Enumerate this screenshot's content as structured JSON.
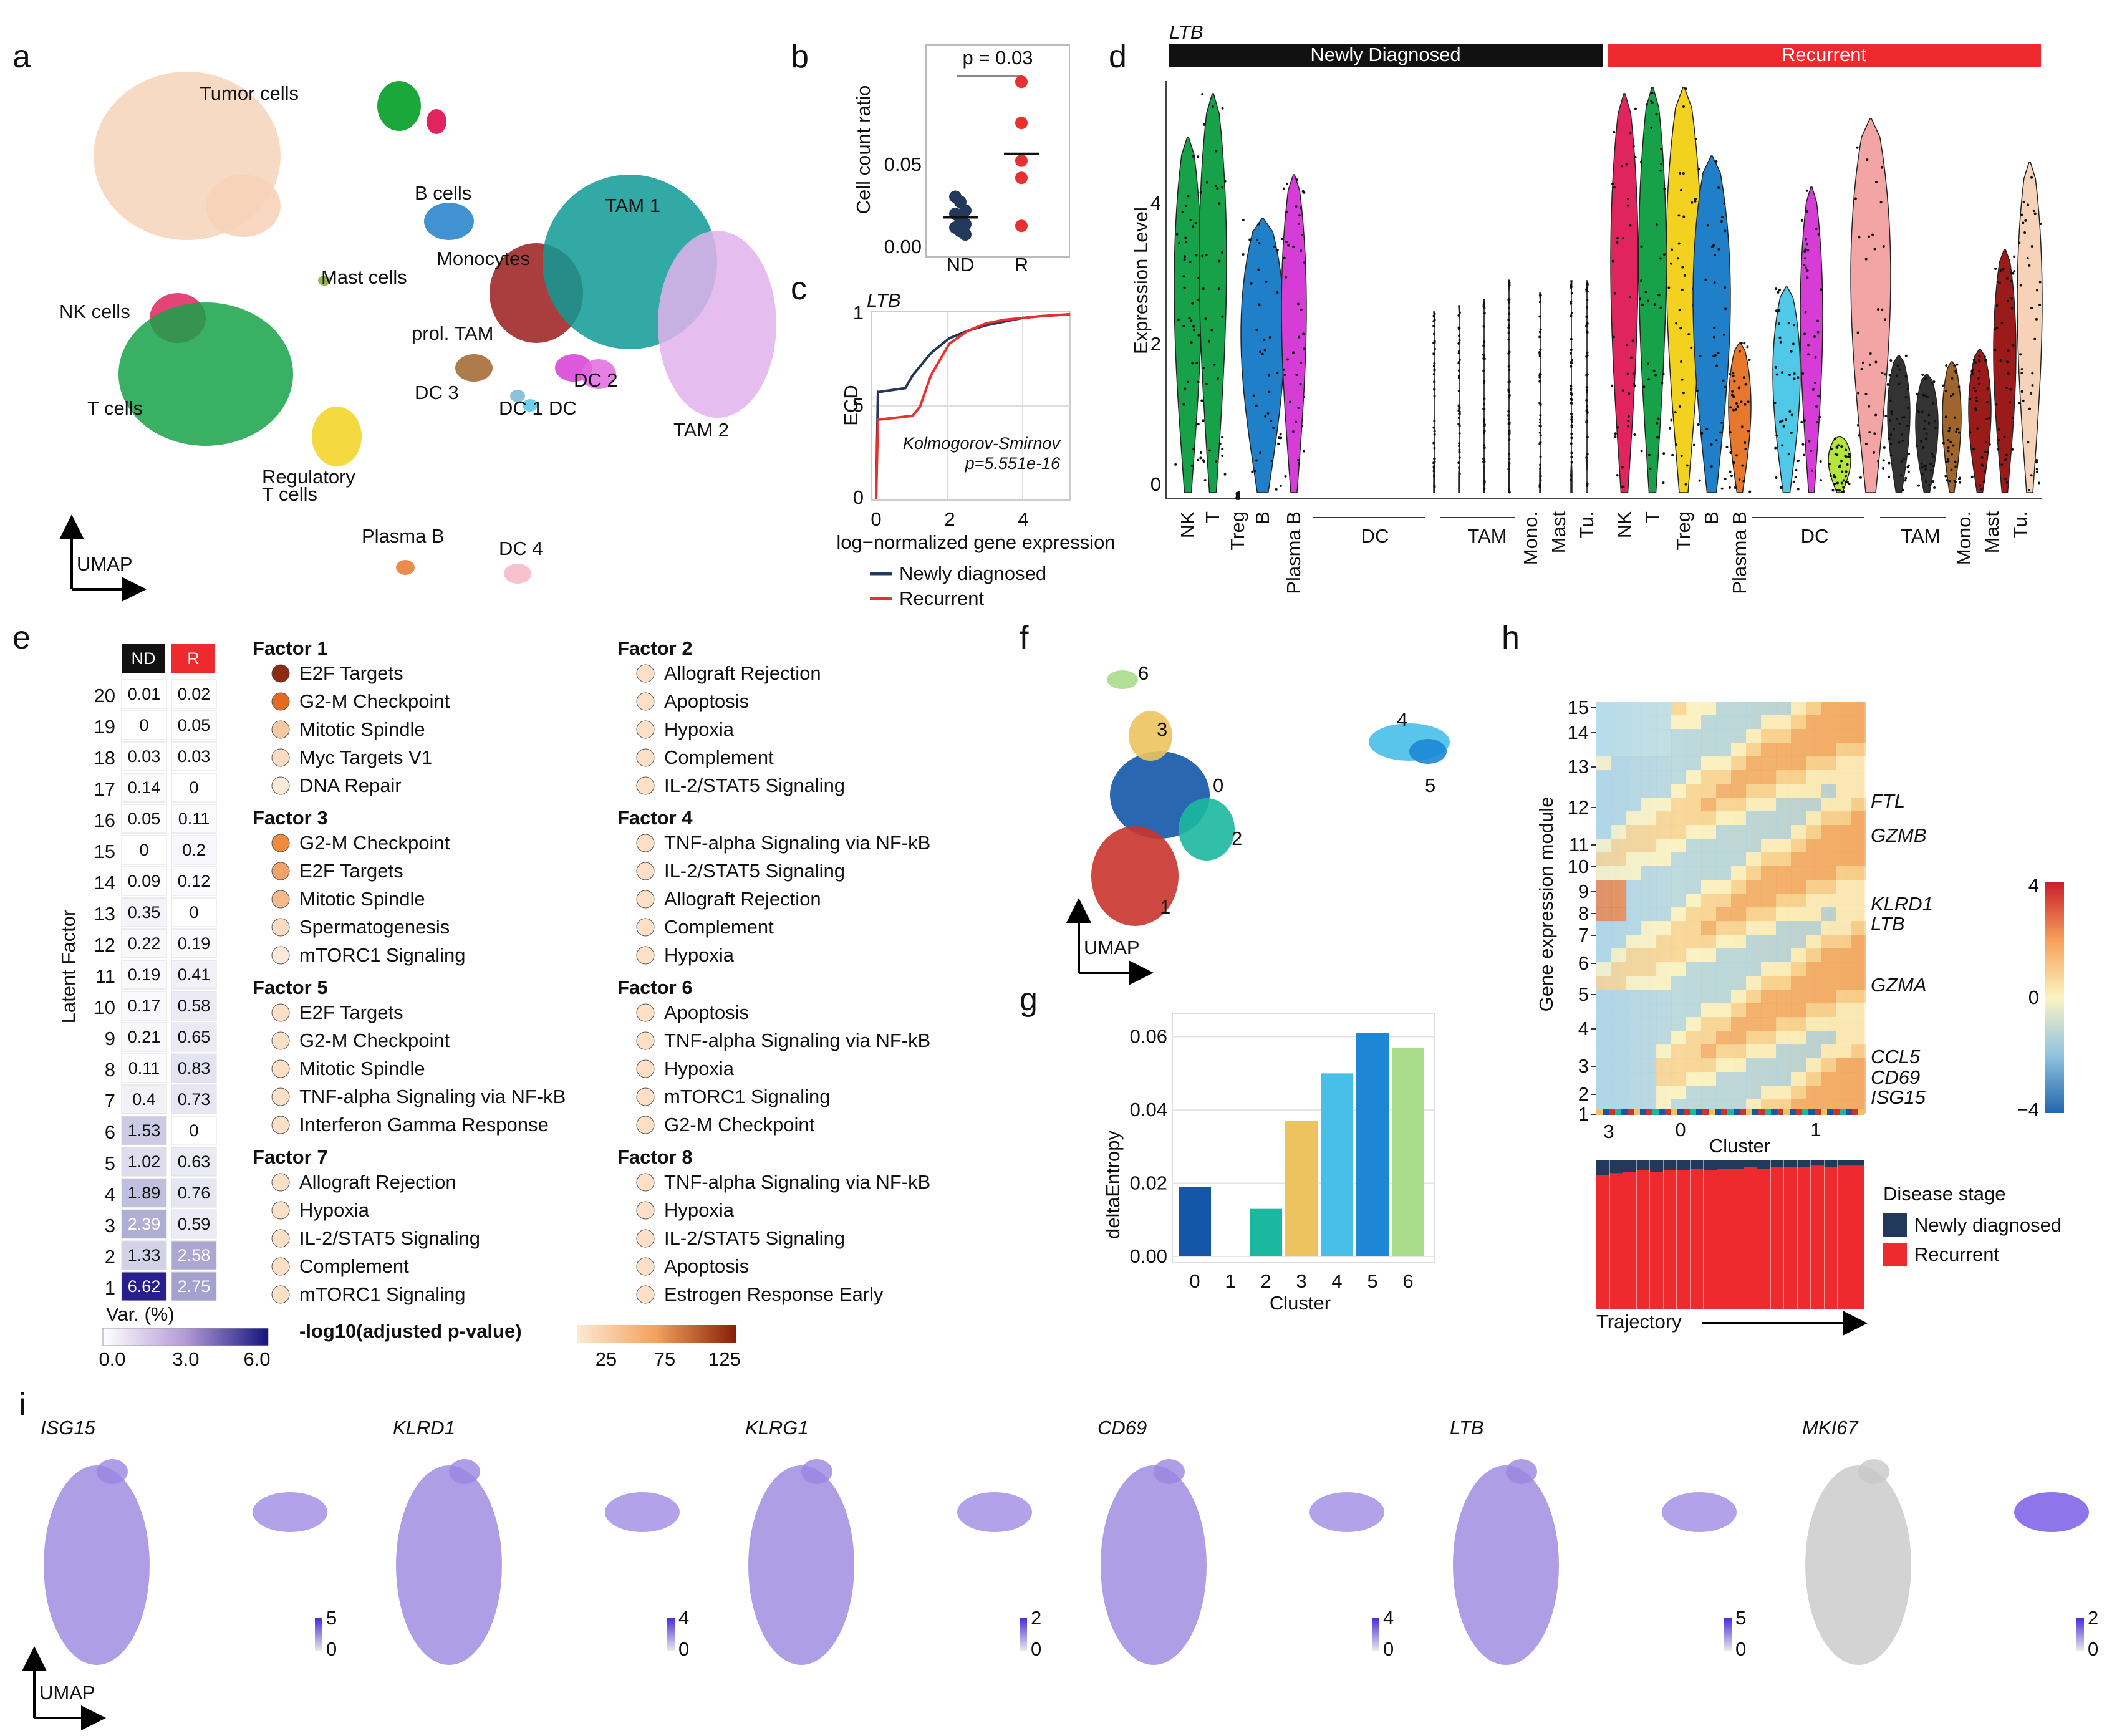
{
  "panels": {
    "a": {
      "letter": "a",
      "clusters": [
        {
          "label": "Tumor cells",
          "color": "#f6d3b8"
        },
        {
          "label": "B cells",
          "color": "#1f7fc8"
        },
        {
          "label": "Mast cells",
          "color": "#8aa63a"
        },
        {
          "label": "Monocytes",
          "color": "#9b1b1b"
        },
        {
          "label": "TAM 1",
          "color": "#0e9a95"
        },
        {
          "label": "NK cells",
          "color": "#e0245e"
        },
        {
          "label": "prol. TAM",
          "color": "#a0642d"
        },
        {
          "label": "DC 3",
          "color": "#7ab6d6"
        },
        {
          "label": "DC 1",
          "color": "#50c8e8"
        },
        {
          "label": "DC",
          "color": "#d63cd6"
        },
        {
          "label": "DC 2",
          "color": "#e26ae0"
        },
        {
          "label": "T cells",
          "color": "#17a24a"
        },
        {
          "label": "TAM 2",
          "color": "#e0b3ec"
        },
        {
          "label": "Regulatory\nT cells",
          "color": "#f2d21f"
        },
        {
          "label": "Plasma B",
          "color": "#e8772e"
        },
        {
          "label": "DC 4",
          "color": "#f3b7c6"
        }
      ],
      "axis": "UMAP"
    },
    "b": {
      "letter": "b",
      "pvalue": "p = 0.03",
      "ylabel": "Cell count ratio",
      "yticks": [
        "0.00",
        "0.05"
      ],
      "groups": [
        "ND",
        "R"
      ]
    },
    "c": {
      "letter": "c",
      "gene": "LTB",
      "ylabel": "ECD",
      "xlabel": "log−normalized gene expression",
      "yticks": [
        "0",
        ".5",
        "1"
      ],
      "xticks": [
        "0",
        "2",
        "4"
      ],
      "test": "Kolmogorov-Smirnov",
      "test_p": "p=5.551e-16",
      "legend": [
        "Newly diagnosed",
        "Recurrent"
      ],
      "colors": [
        "#23395b",
        "#e8312e"
      ]
    },
    "d": {
      "letter": "d",
      "gene": "LTB",
      "groups": [
        "Newly Diagnosed",
        "Recurrent"
      ],
      "ylabel": "Expression Level",
      "yticks": [
        "0",
        "2",
        "4"
      ],
      "xlabels": [
        "NK",
        "T",
        "Treg",
        "B",
        "Plasma B",
        "DC",
        "TAM",
        "Mono.",
        "Mast",
        "Tu."
      ]
    },
    "e": {
      "letter": "e",
      "col_headers": [
        "ND",
        "R"
      ],
      "ylabel": "Latent Factor",
      "colorbar_label": "Var. (%)",
      "colorbar_ticks": [
        "0.0",
        "3.0",
        "6.0"
      ],
      "pval_label": "-log10(adjusted p-value)",
      "pval_ticks": [
        "25",
        "75",
        "125"
      ],
      "factor_rows": [
        "20",
        "19",
        "18",
        "17",
        "16",
        "15",
        "14",
        "13",
        "12",
        "11",
        "10",
        "9",
        "8",
        "7",
        "6",
        "5",
        "4",
        "3",
        "2",
        "1"
      ],
      "factor_nd": [
        "0.01",
        "0",
        "0.03",
        "0.14",
        "0.05",
        "0",
        "0.09",
        "0.35",
        "0.22",
        "0.19",
        "0.17",
        "0.21",
        "0.11",
        "0.4",
        "1.53",
        "1.02",
        "1.89",
        "2.39",
        "1.33",
        "6.62"
      ],
      "factor_r": [
        "0.02",
        "0.05",
        "0.03",
        "0",
        "0.11",
        "0.2",
        "0.12",
        "0",
        "0.19",
        "0.41",
        "0.58",
        "0.65",
        "0.83",
        "0.73",
        "0",
        "0.63",
        "0.76",
        "0.59",
        "2.58",
        "2.75"
      ],
      "factor_groups": [
        {
          "title": "Factor 1",
          "items": [
            "E2F Targets",
            "G2-M Checkpoint",
            "Mitotic Spindle",
            "Myc Targets V1",
            "DNA Repair"
          ]
        },
        {
          "title": "Factor 3",
          "items": [
            "G2-M Checkpoint",
            "E2F Targets",
            "Mitotic Spindle",
            "Spermatogenesis",
            "mTORC1 Signaling"
          ]
        },
        {
          "title": "Factor 5",
          "items": [
            "E2F Targets",
            "G2-M Checkpoint",
            "Mitotic Spindle",
            "TNF-alpha Signaling via NF-kB",
            "Interferon Gamma Response"
          ]
        },
        {
          "title": "Factor 7",
          "items": [
            "Allograft Rejection",
            "Hypoxia",
            "IL-2/STAT5 Signaling",
            "Complement",
            "mTORC1 Signaling"
          ]
        },
        {
          "title": "Factor 2",
          "items": [
            "Allograft Rejection",
            "Apoptosis",
            "Hypoxia",
            "Complement",
            "IL-2/STAT5 Signaling"
          ]
        },
        {
          "title": "Factor 4",
          "items": [
            "TNF-alpha Signaling via NF-kB",
            "IL-2/STAT5 Signaling",
            "Allograft Rejection",
            "Complement",
            "Hypoxia"
          ]
        },
        {
          "title": "Factor 6",
          "items": [
            "Apoptosis",
            "TNF-alpha Signaling via NF-kB",
            "Hypoxia",
            "mTORC1 Signaling",
            "G2-M Checkpoint"
          ]
        },
        {
          "title": "Factor 8",
          "items": [
            "TNF-alpha Signaling via NF-kB",
            "Hypoxia",
            "IL-2/STAT5 Signaling",
            "Apoptosis",
            "Estrogen Response Early"
          ]
        }
      ]
    },
    "f": {
      "letter": "f",
      "clusters": [
        "0",
        "1",
        "2",
        "3",
        "4",
        "5",
        "6"
      ],
      "axis": "UMAP"
    },
    "g": {
      "letter": "g",
      "ylabel": "deltaEntropy",
      "xlabel": "Cluster",
      "yticks": [
        "0.00",
        "0.02",
        "0.04",
        "0.06"
      ]
    },
    "h": {
      "letter": "h",
      "ylabel": "Gene expression module",
      "modules": [
        "15",
        "14",
        "13",
        "12",
        "11",
        "10",
        "9",
        "8",
        "7",
        "6",
        "5",
        "4",
        "3",
        "2",
        "1"
      ],
      "genes": [
        "FTL",
        "GZMB",
        "KLRD1",
        "LTB",
        "GZMA",
        "CCL5",
        "CD69",
        "ISG15"
      ],
      "colorbar_ticks": [
        "4",
        "0",
        "−4"
      ],
      "xaxis_ticks": [
        "3",
        "0",
        "1"
      ],
      "xlabel": "Cluster",
      "legend_title": "Disease stage",
      "legend": [
        "Newly diagnosed",
        "Recurrent"
      ],
      "trajectory": "Trajectory"
    },
    "i": {
      "letter": "i",
      "genes": [
        {
          "name": "ISG15",
          "max": "5",
          "min": "0"
        },
        {
          "name": "KLRD1",
          "max": "4",
          "min": "0"
        },
        {
          "name": "KLRG1",
          "max": "2",
          "min": "0"
        },
        {
          "name": "CD69",
          "max": "4",
          "min": "0"
        },
        {
          "name": "LTB",
          "max": "5",
          "min": "0"
        },
        {
          "name": "MKI67",
          "max": "2",
          "min": "0"
        }
      ],
      "axis": "UMAP"
    }
  },
  "chart_data": [
    {
      "panel": "b",
      "type": "scatter",
      "categories": [
        "ND",
        "R"
      ],
      "series": [
        {
          "name": "ND",
          "values": [
            0.03,
            0.027,
            0.022,
            0.02,
            0.017,
            0.014,
            0.012,
            0.01,
            0.008
          ],
          "color": "#23395b"
        },
        {
          "name": "R",
          "values": [
            0.097,
            0.073,
            0.051,
            0.041,
            0.013
          ],
          "color": "#e8312e"
        }
      ],
      "means": [
        0.018,
        0.055
      ],
      "ylim": [
        0,
        0.12
      ],
      "ylabel": "Cell count ratio"
    },
    {
      "panel": "c",
      "type": "line",
      "xlim": [
        0,
        5.3
      ],
      "ylim": [
        0,
        1
      ],
      "series": [
        {
          "name": "Newly diagnosed",
          "x": [
            0,
            0.05,
            0.1,
            0.8,
            1.0,
            1.5,
            2.0,
            2.5,
            3.0,
            3.5,
            4.0,
            4.5,
            5.3
          ],
          "y": [
            0,
            0.58,
            0.58,
            0.6,
            0.67,
            0.79,
            0.87,
            0.91,
            0.94,
            0.96,
            0.98,
            0.99,
            1.0
          ]
        },
        {
          "name": "Recurrent",
          "x": [
            0,
            0.05,
            0.1,
            1.0,
            1.2,
            1.5,
            2.0,
            2.5,
            3.0,
            3.5,
            4.0,
            4.5,
            5.3
          ],
          "y": [
            0,
            0.43,
            0.43,
            0.45,
            0.5,
            0.67,
            0.84,
            0.91,
            0.95,
            0.97,
            0.98,
            0.99,
            1.0
          ]
        }
      ],
      "xlabel": "log−normalized gene expression",
      "ylabel": "ECD"
    },
    {
      "panel": "g",
      "type": "bar",
      "categories": [
        "0",
        "1",
        "2",
        "3",
        "4",
        "5",
        "6"
      ],
      "values": [
        0.019,
        0.0,
        0.013,
        0.037,
        0.05,
        0.061,
        0.057
      ],
      "colors": [
        "#1457a8",
        "#c9342c",
        "#1bb8a0",
        "#ecc35e",
        "#48bfe8",
        "#1d87d6",
        "#a8db8a"
      ],
      "ylim": [
        0,
        0.063
      ],
      "xlabel": "Cluster",
      "ylabel": "deltaEntropy"
    },
    {
      "panel": "h",
      "type": "bar",
      "title": "Disease stage",
      "categories": [
        "1",
        "2",
        "3",
        "4",
        "5",
        "6",
        "7",
        "8",
        "9",
        "10",
        "11",
        "12",
        "13",
        "14",
        "15",
        "16",
        "17",
        "18",
        "19",
        "20"
      ],
      "series": [
        {
          "name": "Newly diagnosed",
          "values": [
            0.1,
            0.09,
            0.08,
            0.07,
            0.08,
            0.07,
            0.07,
            0.06,
            0.07,
            0.06,
            0.06,
            0.05,
            0.06,
            0.05,
            0.05,
            0.05,
            0.04,
            0.05,
            0.04,
            0.04
          ]
        },
        {
          "name": "Recurrent",
          "values": [
            0.9,
            0.91,
            0.92,
            0.93,
            0.92,
            0.93,
            0.93,
            0.94,
            0.93,
            0.94,
            0.94,
            0.95,
            0.94,
            0.95,
            0.95,
            0.95,
            0.96,
            0.95,
            0.96,
            0.96
          ]
        }
      ]
    }
  ]
}
